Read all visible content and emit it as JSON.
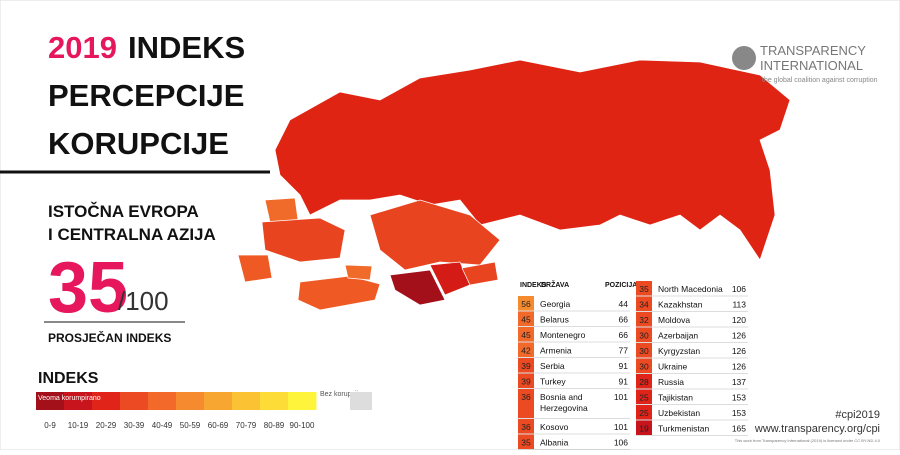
{
  "header": {
    "year": "2019",
    "lines": [
      "INDEKS",
      "PERCEPCIJE",
      "KORUPCIJE"
    ]
  },
  "logo": {
    "line1": "TRANSPARENCY",
    "line2": "INTERNATIONAL",
    "tagline": "the global coalition against corruption"
  },
  "region": {
    "lines": [
      "ISTOČNA EVROPA",
      "I CENTRALNA AZIJA"
    ],
    "score": "35",
    "out_of": "/100",
    "score_label": "PROSJEČAN INDEKS"
  },
  "legend": {
    "title": "INDEKS",
    "low": "Veoma korumpirano",
    "high": "Bez korupcije",
    "bins": [
      "0-9",
      "10-19",
      "20-29",
      "30-39",
      "40-49",
      "50-59",
      "60-69",
      "70-79",
      "80-89",
      "90-100"
    ]
  },
  "table": {
    "headers": [
      "INDEKS",
      "DRŽAVA",
      "POZICIJA"
    ],
    "left": [
      [
        "56",
        "Georgia",
        "44"
      ],
      [
        "45",
        "Belarus",
        "66"
      ],
      [
        "45",
        "Montenegro",
        "66"
      ],
      [
        "42",
        "Armenia",
        "77"
      ],
      [
        "39",
        "Serbia",
        "91"
      ],
      [
        "39",
        "Turkey",
        "91"
      ],
      [
        "36",
        "Bosnia and Herzegovina",
        "101"
      ],
      [
        "36",
        "Kosovo",
        "101"
      ],
      [
        "35",
        "Albania",
        "106"
      ]
    ],
    "right": [
      [
        "35",
        "North Macedonia",
        "106"
      ],
      [
        "34",
        "Kazakhstan",
        "113"
      ],
      [
        "32",
        "Moldova",
        "120"
      ],
      [
        "30",
        "Azerbaijan",
        "126"
      ],
      [
        "30",
        "Kyrgyzstan",
        "126"
      ],
      [
        "30",
        "Ukraine",
        "126"
      ],
      [
        "28",
        "Russia",
        "137"
      ],
      [
        "25",
        "Tajikistan",
        "153"
      ],
      [
        "25",
        "Uzbekistan",
        "153"
      ],
      [
        "19",
        "Turkmenistan",
        "165"
      ]
    ]
  },
  "footer": {
    "hashtag": "#cpi2019",
    "url": "www.transparency.org/cpi",
    "license": "This work from Transparency International (2019) is licensed under CC BY-ND 4.0"
  }
}
